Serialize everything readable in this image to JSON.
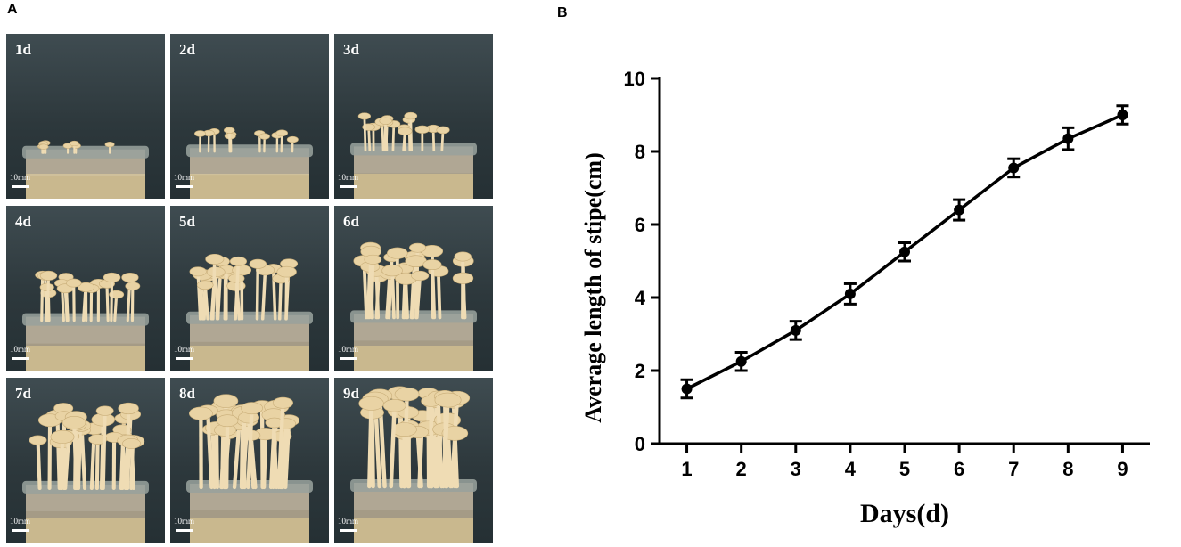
{
  "panels": {
    "a_label": "A",
    "b_label": "B"
  },
  "photos": {
    "tiles": [
      {
        "day_label": "1d",
        "scale_text": "10mm",
        "growth": 0.02
      },
      {
        "day_label": "2d",
        "scale_text": "10mm",
        "growth": 0.15
      },
      {
        "day_label": "3d",
        "scale_text": "10mm",
        "growth": 0.3
      },
      {
        "day_label": "4d",
        "scale_text": "10mm",
        "growth": 0.45
      },
      {
        "day_label": "5d",
        "scale_text": "10mm",
        "growth": 0.6
      },
      {
        "day_label": "6d",
        "scale_text": "10mm",
        "growth": 0.72
      },
      {
        "day_label": "7d",
        "scale_text": "10mm",
        "growth": 0.84
      },
      {
        "day_label": "8d",
        "scale_text": "10mm",
        "growth": 0.92
      },
      {
        "day_label": "9d",
        "scale_text": "10mm",
        "growth": 1.0
      }
    ]
  },
  "colors": {
    "photo_background": "#2f3b3f",
    "mushroom_cap": "#e9d3a4",
    "mushroom_stipe": "#efdcb4",
    "jar_glass": "#9aa39f",
    "line": "#000000"
  },
  "chart_data": {
    "type": "line",
    "title": "",
    "xlabel": "Days(d)",
    "ylabel": "Average length of stipe(cm)",
    "x": [
      1,
      2,
      3,
      4,
      5,
      6,
      7,
      8,
      9
    ],
    "x_tick_labels": [
      "1",
      "2",
      "3",
      "4",
      "5",
      "6",
      "7",
      "8",
      "9"
    ],
    "y_ticks": [
      0,
      2,
      4,
      6,
      8,
      10
    ],
    "y_tick_labels": [
      "0",
      "2",
      "4",
      "6",
      "8",
      "10"
    ],
    "ylim": [
      0,
      10
    ],
    "xlim": [
      0.5,
      9.5
    ],
    "grid": false,
    "series": [
      {
        "values": [
          1.5,
          2.25,
          3.1,
          4.1,
          5.25,
          6.4,
          7.55,
          8.35,
          9.0
        ],
        "errors": [
          0.25,
          0.25,
          0.25,
          0.28,
          0.25,
          0.28,
          0.25,
          0.3,
          0.25
        ]
      }
    ]
  }
}
